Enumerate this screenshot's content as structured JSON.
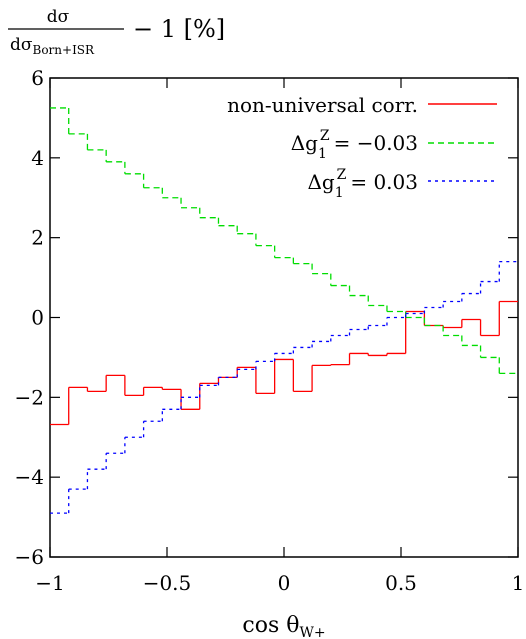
{
  "chart_data": {
    "type": "line",
    "step": true,
    "title": "",
    "ylabel": {
      "numerator": "dσ",
      "denominator_main": "dσ",
      "denominator_sub": "Born+ISR",
      "suffix": "− 1 [%]"
    },
    "xlabel": {
      "main": "cos θ",
      "sub": "W+"
    },
    "xlim": [
      -1,
      1
    ],
    "ylim": [
      -6,
      6
    ],
    "xticks": [
      -1,
      -0.5,
      0,
      0.5,
      1
    ],
    "xtick_labels": [
      "−1",
      "−0.5",
      "0",
      "0.5",
      "1"
    ],
    "yticks": [
      -6,
      -4,
      -2,
      0,
      2,
      4,
      6
    ],
    "ytick_labels": [
      "−6",
      "−4",
      "−2",
      "0",
      "2",
      "4",
      "6"
    ],
    "legend_position": "top-right",
    "grid": false,
    "bin_edges": [
      -1.0,
      -0.92,
      -0.84,
      -0.76,
      -0.68,
      -0.6,
      -0.52,
      -0.44,
      -0.36,
      -0.28,
      -0.2,
      -0.12,
      -0.04,
      0.04,
      0.12,
      0.2,
      0.28,
      0.36,
      0.44,
      0.52,
      0.6,
      0.68,
      0.76,
      0.84,
      0.92,
      1.0
    ],
    "series": [
      {
        "name": "non-universal corr.",
        "color": "#ff0000",
        "dash": "solid",
        "values": [
          -2.68,
          -1.75,
          -1.85,
          -1.45,
          -1.95,
          -1.75,
          -1.8,
          -2.3,
          -1.65,
          -1.5,
          -1.25,
          -1.9,
          -1.05,
          -1.85,
          -1.2,
          -1.18,
          -0.9,
          -0.95,
          -0.9,
          0.15,
          -0.2,
          -0.25,
          -0.05,
          -0.45,
          0.4
        ]
      },
      {
        "name_main": "Δg",
        "name_sup": "Z",
        "name_sub": "1",
        "name_value": "= −0.03",
        "color": "#00dd00",
        "dash": "dashed",
        "values": [
          5.25,
          4.6,
          4.2,
          3.9,
          3.6,
          3.25,
          3.0,
          2.75,
          2.5,
          2.3,
          2.1,
          1.8,
          1.5,
          1.35,
          1.1,
          0.8,
          0.55,
          0.3,
          0.15,
          0.0,
          -0.2,
          -0.45,
          -0.7,
          -1.0,
          -1.4
        ]
      },
      {
        "name_main": "Δg",
        "name_sup": "Z",
        "name_sub": "1",
        "name_value": "= 0.03",
        "color": "#0000ff",
        "dash": "dotted",
        "values": [
          -4.9,
          -4.3,
          -3.8,
          -3.4,
          -3.0,
          -2.6,
          -2.3,
          -2.0,
          -1.7,
          -1.5,
          -1.3,
          -1.1,
          -0.9,
          -0.75,
          -0.6,
          -0.45,
          -0.3,
          -0.2,
          0.0,
          0.1,
          0.25,
          0.4,
          0.6,
          0.9,
          1.4
        ]
      }
    ]
  }
}
